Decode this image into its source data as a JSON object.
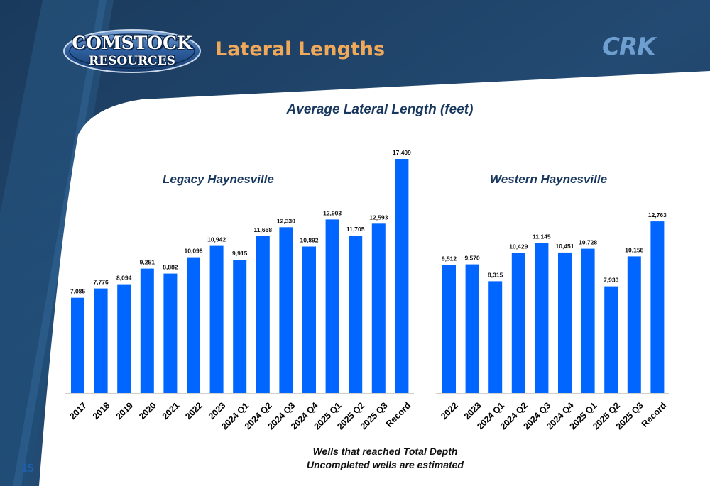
{
  "header": {
    "logo_top": "COMSTOCK",
    "logo_bottom": "RESOURCES",
    "title": "Lateral Lengths",
    "crk_logo": "CRK"
  },
  "chart_title": "Average Lateral Length  (feet)",
  "footnotes": [
    "Wells that reached Total Depth",
    "Uncompleted wells are estimated"
  ],
  "page_number": "15",
  "colors": {
    "bar": "#0066ff",
    "title": "#17375e",
    "header_title": "#f0a85a",
    "background_dark": "#1d3f63"
  },
  "chart_data": [
    {
      "type": "bar",
      "title": "Legacy Haynesville",
      "categories": [
        "2017",
        "2018",
        "2019",
        "2020",
        "2021",
        "2022",
        "2023",
        "2024 Q1",
        "2024 Q2",
        "2024 Q3",
        "2024 Q4",
        "2025 Q1",
        "2025 Q2",
        "2025 Q3",
        "Record"
      ],
      "values": [
        7085,
        7776,
        8094,
        9251,
        8882,
        10098,
        10942,
        9915,
        11668,
        12330,
        10892,
        12903,
        11705,
        12593,
        17409
      ],
      "data_labels": [
        "7,085",
        "7,776",
        "8,094",
        "9,251",
        "8,882",
        "10,098",
        "10,942",
        "9,915",
        "11,668",
        "12,330",
        "10,892",
        "12,903",
        "11,705",
        "12,593",
        "17,409"
      ],
      "xlabel": "",
      "ylabel": "",
      "ylim": [
        0,
        17409
      ],
      "grid": false
    },
    {
      "type": "bar",
      "title": "Western Haynesville",
      "categories": [
        "2022",
        "2023",
        "2024 Q1",
        "2024 Q2",
        "2024 Q3",
        "2024 Q4",
        "2025 Q1",
        "2025 Q2",
        "2025 Q3",
        "Record"
      ],
      "values": [
        9512,
        9570,
        8315,
        10429,
        11145,
        10451,
        10728,
        7933,
        10158,
        12763
      ],
      "data_labels": [
        "9,512",
        "9,570",
        "8,315",
        "10,429",
        "11,145",
        "10,451",
        "10,728",
        "7,933",
        "10,158",
        "12,763"
      ],
      "xlabel": "",
      "ylabel": "",
      "ylim": [
        0,
        17409
      ],
      "grid": false
    }
  ]
}
